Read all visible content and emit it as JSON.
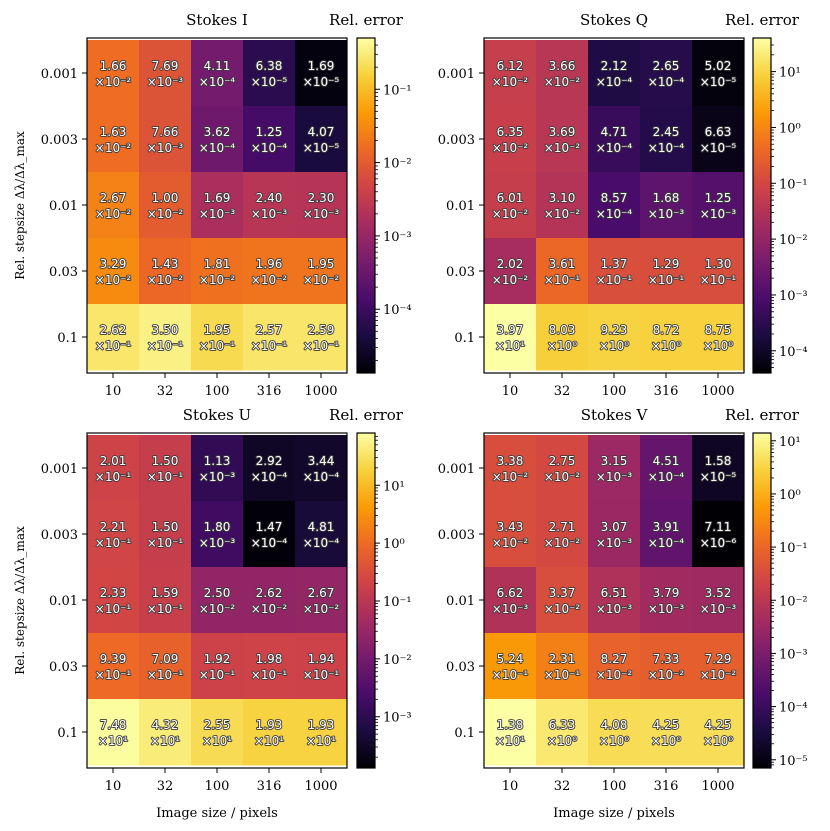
{
  "chart_data": [
    {
      "type": "heatmap",
      "title": "Stokes I",
      "colorbar_label": "Rel. error",
      "xlabel": "",
      "ylabel": "Rel. stepsize Δλ/Δλ_max",
      "x_categories": [
        "10",
        "32",
        "100",
        "316",
        "1000"
      ],
      "y_categories": [
        "0.001",
        "0.003",
        "0.01",
        "0.03",
        "0.1"
      ],
      "values": [
        [
          0.0166,
          0.00769,
          0.000411,
          6.38e-05,
          1.69e-05
        ],
        [
          0.0163,
          0.00766,
          0.000362,
          0.000125,
          4.07e-05
        ],
        [
          0.0267,
          0.01,
          0.00169,
          0.0024,
          0.0023
        ],
        [
          0.0329,
          0.0143,
          0.0181,
          0.0196,
          0.0195
        ],
        [
          0.262,
          0.35,
          0.195,
          0.257,
          0.259
        ]
      ],
      "labels": [
        [
          [
            "1.66",
            "×10⁻²"
          ],
          [
            "7.69",
            "×10⁻³"
          ],
          [
            "4.11",
            "×10⁻⁴"
          ],
          [
            "6.38",
            "×10⁻⁵"
          ],
          [
            "1.69",
            "×10⁻⁵"
          ]
        ],
        [
          [
            "1.63",
            "×10⁻²"
          ],
          [
            "7.66",
            "×10⁻³"
          ],
          [
            "3.62",
            "×10⁻⁴"
          ],
          [
            "1.25",
            "×10⁻⁴"
          ],
          [
            "4.07",
            "×10⁻⁵"
          ]
        ],
        [
          [
            "2.67",
            "×10⁻²"
          ],
          [
            "1.00",
            "×10⁻²"
          ],
          [
            "1.69",
            "×10⁻³"
          ],
          [
            "2.40",
            "×10⁻³"
          ],
          [
            "2.30",
            "×10⁻³"
          ]
        ],
        [
          [
            "3.29",
            "×10⁻²"
          ],
          [
            "1.43",
            "×10⁻²"
          ],
          [
            "1.81",
            "×10⁻²"
          ],
          [
            "1.96",
            "×10⁻²"
          ],
          [
            "1.95",
            "×10⁻²"
          ]
        ],
        [
          [
            "2.62",
            "×10⁻¹"
          ],
          [
            "3.50",
            "×10⁻¹"
          ],
          [
            "1.95",
            "×10⁻¹"
          ],
          [
            "2.57",
            "×10⁻¹"
          ],
          [
            "2.59",
            "×10⁻¹"
          ]
        ]
      ],
      "colorbar_range": [
        1.35e-05,
        0.5
      ],
      "colorbar_ticks": [
        {
          "value": 0.1,
          "label": "10⁻¹"
        },
        {
          "value": 0.01,
          "label": "10⁻²"
        },
        {
          "value": 0.001,
          "label": "10⁻³"
        },
        {
          "value": 0.0001,
          "label": "10⁻⁴"
        }
      ]
    },
    {
      "type": "heatmap",
      "title": "Stokes Q",
      "colorbar_label": "Rel. error",
      "xlabel": "",
      "ylabel": "",
      "x_categories": [
        "10",
        "32",
        "100",
        "316",
        "1000"
      ],
      "y_categories": [
        "0.001",
        "0.003",
        "0.01",
        "0.03",
        "0.1"
      ],
      "values": [
        [
          0.0612,
          0.0366,
          0.000212,
          0.000265,
          5.02e-05
        ],
        [
          0.0635,
          0.0369,
          0.000471,
          0.000245,
          6.63e-05
        ],
        [
          0.0601,
          0.031,
          0.000857,
          0.00168,
          0.00125
        ],
        [
          0.0202,
          0.361,
          0.137,
          0.129,
          0.13
        ],
        [
          39.7,
          8.03,
          9.23,
          8.72,
          8.75
        ]
      ],
      "labels": [
        [
          [
            "6.12",
            "×10⁻²"
          ],
          [
            "3.66",
            "×10⁻²"
          ],
          [
            "2.12",
            "×10⁻⁴"
          ],
          [
            "2.65",
            "×10⁻⁴"
          ],
          [
            "5.02",
            "×10⁻⁵"
          ]
        ],
        [
          [
            "6.35",
            "×10⁻²"
          ],
          [
            "3.69",
            "×10⁻²"
          ],
          [
            "4.71",
            "×10⁻⁴"
          ],
          [
            "2.45",
            "×10⁻⁴"
          ],
          [
            "6.63",
            "×10⁻⁵"
          ]
        ],
        [
          [
            "6.01",
            "×10⁻²"
          ],
          [
            "3.10",
            "×10⁻²"
          ],
          [
            "8.57",
            "×10⁻⁴"
          ],
          [
            "1.68",
            "×10⁻³"
          ],
          [
            "1.25",
            "×10⁻³"
          ]
        ],
        [
          [
            "2.02",
            "×10⁻²"
          ],
          [
            "3.61",
            "×10⁻¹"
          ],
          [
            "1.37",
            "×10⁻¹"
          ],
          [
            "1.29",
            "×10⁻¹"
          ],
          [
            "1.30",
            "×10⁻¹"
          ]
        ],
        [
          [
            "3.97",
            "×10¹"
          ],
          [
            "8.03",
            "×10⁰"
          ],
          [
            "9.23",
            "×10⁰"
          ],
          [
            "8.72",
            "×10⁰"
          ],
          [
            "8.75",
            "×10⁰"
          ]
        ]
      ],
      "colorbar_range": [
        4e-05,
        40
      ],
      "colorbar_ticks": [
        {
          "value": 10,
          "label": "10¹"
        },
        {
          "value": 1,
          "label": "10⁰"
        },
        {
          "value": 0.1,
          "label": "10⁻¹"
        },
        {
          "value": 0.01,
          "label": "10⁻²"
        },
        {
          "value": 0.001,
          "label": "10⁻³"
        },
        {
          "value": 0.0001,
          "label": "10⁻⁴"
        }
      ]
    },
    {
      "type": "heatmap",
      "title": "Stokes U",
      "colorbar_label": "Rel. error",
      "xlabel": "Image size / pixels",
      "ylabel": "Rel. stepsize Δλ/Δλ_max",
      "x_categories": [
        "10",
        "32",
        "100",
        "316",
        "1000"
      ],
      "y_categories": [
        "0.001",
        "0.003",
        "0.01",
        "0.03",
        "0.1"
      ],
      "values": [
        [
          0.201,
          0.15,
          0.00113,
          0.000292,
          0.000344
        ],
        [
          0.221,
          0.15,
          0.0018,
          0.000147,
          0.000481
        ],
        [
          0.233,
          0.159,
          0.025,
          0.0262,
          0.0267
        ],
        [
          0.939,
          0.709,
          0.192,
          0.198,
          0.194
        ],
        [
          74.8,
          43.2,
          25.5,
          19.3,
          19.3
        ]
      ],
      "labels": [
        [
          [
            "2.01",
            "×10⁻¹"
          ],
          [
            "1.50",
            "×10⁻¹"
          ],
          [
            "1.13",
            "×10⁻³"
          ],
          [
            "2.92",
            "×10⁻⁴"
          ],
          [
            "3.44",
            "×10⁻⁴"
          ]
        ],
        [
          [
            "2.21",
            "×10⁻¹"
          ],
          [
            "1.50",
            "×10⁻¹"
          ],
          [
            "1.80",
            "×10⁻³"
          ],
          [
            "1.47",
            "×10⁻⁴"
          ],
          [
            "4.81",
            "×10⁻⁴"
          ]
        ],
        [
          [
            "2.33",
            "×10⁻¹"
          ],
          [
            "1.59",
            "×10⁻¹"
          ],
          [
            "2.50",
            "×10⁻²"
          ],
          [
            "2.62",
            "×10⁻²"
          ],
          [
            "2.67",
            "×10⁻²"
          ]
        ],
        [
          [
            "9.39",
            "×10⁻¹"
          ],
          [
            "7.09",
            "×10⁻¹"
          ],
          [
            "1.92",
            "×10⁻¹"
          ],
          [
            "1.98",
            "×10⁻¹"
          ],
          [
            "1.94",
            "×10⁻¹"
          ]
        ],
        [
          [
            "7.48",
            "×10¹"
          ],
          [
            "4.32",
            "×10¹"
          ],
          [
            "2.55",
            "×10¹"
          ],
          [
            "1.93",
            "×10¹"
          ],
          [
            "1.93",
            "×10¹"
          ]
        ]
      ],
      "colorbar_range": [
        0.00013,
        80
      ],
      "colorbar_ticks": [
        {
          "value": 10,
          "label": "10¹"
        },
        {
          "value": 1,
          "label": "10⁰"
        },
        {
          "value": 0.1,
          "label": "10⁻¹"
        },
        {
          "value": 0.01,
          "label": "10⁻²"
        },
        {
          "value": 0.001,
          "label": "10⁻³"
        }
      ]
    },
    {
      "type": "heatmap",
      "title": "Stokes V",
      "colorbar_label": "Rel. error",
      "xlabel": "Image size / pixels",
      "ylabel": "",
      "x_categories": [
        "10",
        "32",
        "100",
        "316",
        "1000"
      ],
      "y_categories": [
        "0.001",
        "0.003",
        "0.01",
        "0.03",
        "0.1"
      ],
      "values": [
        [
          0.0338,
          0.0275,
          0.00315,
          0.000451,
          1.58e-05
        ],
        [
          0.0343,
          0.0271,
          0.00307,
          0.000391,
          7.11e-06
        ],
        [
          0.00662,
          0.0337,
          0.00651,
          0.00379,
          0.00352
        ],
        [
          0.524,
          0.231,
          0.0827,
          0.0733,
          0.0729
        ],
        [
          13.8,
          6.33,
          4.08,
          4.25,
          4.25
        ]
      ],
      "labels": [
        [
          [
            "3.38",
            "×10⁻²"
          ],
          [
            "2.75",
            "×10⁻²"
          ],
          [
            "3.15",
            "×10⁻³"
          ],
          [
            "4.51",
            "×10⁻⁴"
          ],
          [
            "1.58",
            "×10⁻⁵"
          ]
        ],
        [
          [
            "3.43",
            "×10⁻²"
          ],
          [
            "2.71",
            "×10⁻²"
          ],
          [
            "3.07",
            "×10⁻³"
          ],
          [
            "3.91",
            "×10⁻⁴"
          ],
          [
            "7.11",
            "×10⁻⁶"
          ]
        ],
        [
          [
            "6.62",
            "×10⁻³"
          ],
          [
            "3.37",
            "×10⁻²"
          ],
          [
            "6.51",
            "×10⁻³"
          ],
          [
            "3.79",
            "×10⁻³"
          ],
          [
            "3.52",
            "×10⁻³"
          ]
        ],
        [
          [
            "5.24",
            "×10⁻¹"
          ],
          [
            "2.31",
            "×10⁻¹"
          ],
          [
            "8.27",
            "×10⁻²"
          ],
          [
            "7.33",
            "×10⁻²"
          ],
          [
            "7.29",
            "×10⁻²"
          ]
        ],
        [
          [
            "1.38",
            "×10¹"
          ],
          [
            "6.33",
            "×10⁰"
          ],
          [
            "4.08",
            "×10⁰"
          ],
          [
            "4.25",
            "×10⁰"
          ],
          [
            "4.25",
            "×10⁰"
          ]
        ]
      ],
      "colorbar_range": [
        7e-06,
        14
      ],
      "colorbar_ticks": [
        {
          "value": 10,
          "label": "10¹"
        },
        {
          "value": 1,
          "label": "10⁰"
        },
        {
          "value": 0.1,
          "label": "10⁻¹"
        },
        {
          "value": 0.01,
          "label": "10⁻²"
        },
        {
          "value": 0.001,
          "label": "10⁻³"
        },
        {
          "value": 0.0001,
          "label": "10⁻⁴"
        },
        {
          "value": 1e-05,
          "label": "10⁻⁵"
        }
      ]
    }
  ],
  "colormap": "inferno",
  "colormap_stops": [
    "#000004",
    "#1b0c41",
    "#4a0c6b",
    "#781c6d",
    "#a52c60",
    "#cf4446",
    "#ed6925",
    "#fb9b06",
    "#f7d13d",
    "#fcffa4"
  ]
}
